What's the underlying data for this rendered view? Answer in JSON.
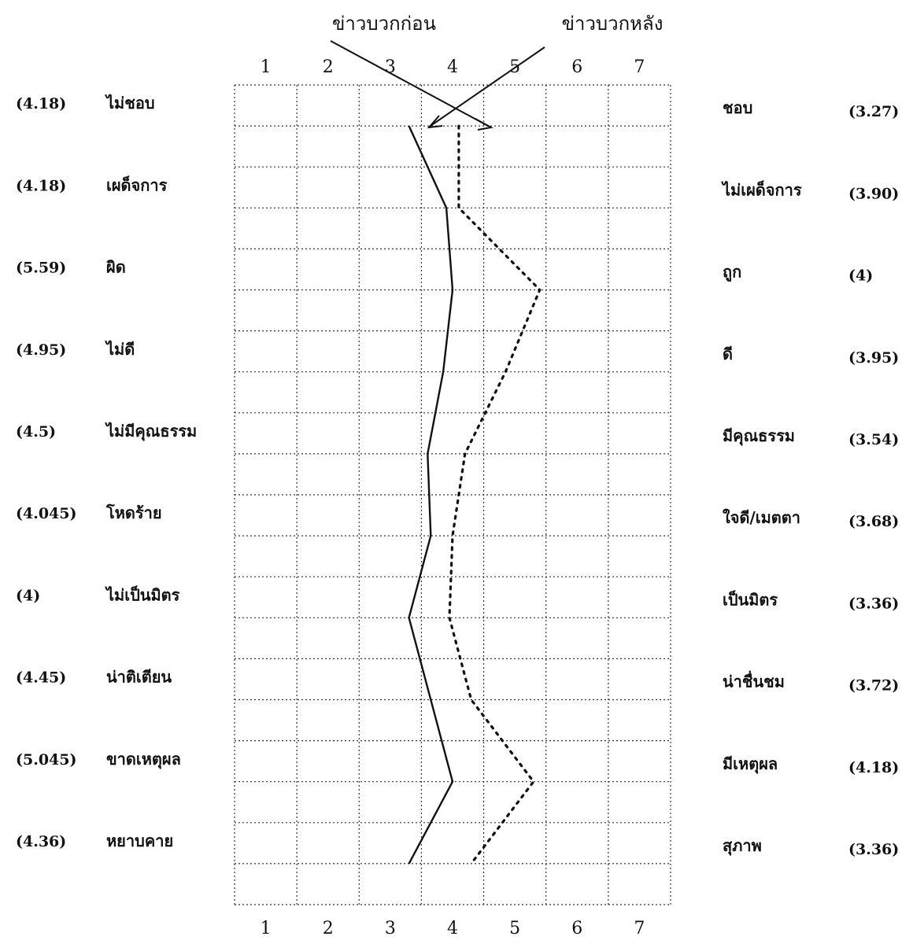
{
  "chart_data": {
    "type": "line",
    "title": "",
    "xlabel": "",
    "ylabel": "",
    "scale": [
      1,
      2,
      3,
      4,
      5,
      6,
      7
    ],
    "xlim": [
      1,
      7
    ],
    "grid": true,
    "series": [
      {
        "name": "ข่าวบวกก่อน",
        "style": "solid",
        "color": "#111111",
        "values": [
          3.3,
          3.9,
          4.0,
          3.85,
          3.6,
          3.65,
          3.3,
          3.65,
          4.0,
          3.3
        ]
      },
      {
        "name": "ข่าวบวกหลัง",
        "style": "dotted",
        "color": "#111111",
        "values": [
          4.1,
          4.1,
          5.4,
          4.85,
          4.2,
          4.0,
          3.95,
          4.3,
          5.3,
          4.3
        ]
      }
    ],
    "items": [
      {
        "left_value": "(4.18)",
        "left_label": "ไม่ชอบ",
        "right_label": "ชอบ",
        "right_value": "(3.27)"
      },
      {
        "left_value": "(4.18)",
        "left_label": "เผด็จการ",
        "right_label": "ไม่เผด็จการ",
        "right_value": "(3.90)"
      },
      {
        "left_value": "(5.59)",
        "left_label": "ผิด",
        "right_label": "ถูก",
        "right_value": "(4)"
      },
      {
        "left_value": "(4.95)",
        "left_label": "ไม่ดี",
        "right_label": "ดี",
        "right_value": "(3.95)"
      },
      {
        "left_value": "(4.5)",
        "left_label": "ไม่มีคุณธรรม",
        "right_label": "มีคุณธรรม",
        "right_value": "(3.54)"
      },
      {
        "left_value": "(4.045)",
        "left_label": "โหดร้าย",
        "right_label": "ใจดี/เมตตา",
        "right_value": "(3.68)"
      },
      {
        "left_value": "(4)",
        "left_label": "ไม่เป็นมิตร",
        "right_label": "เป็นมิตร",
        "right_value": "(3.36)"
      },
      {
        "left_value": "(4.45)",
        "left_label": "น่าติเตียน",
        "right_label": "น่าชื่นชม",
        "right_value": "(3.72)"
      },
      {
        "left_value": "(5.045)",
        "left_label": "ขาดเหตุผล",
        "right_label": "มีเหตุผล",
        "right_value": "(4.18)"
      },
      {
        "left_value": "(4.36)",
        "left_label": "หยาบคาย",
        "right_label": "สุภาพ",
        "right_value": "(3.36)"
      }
    ]
  }
}
